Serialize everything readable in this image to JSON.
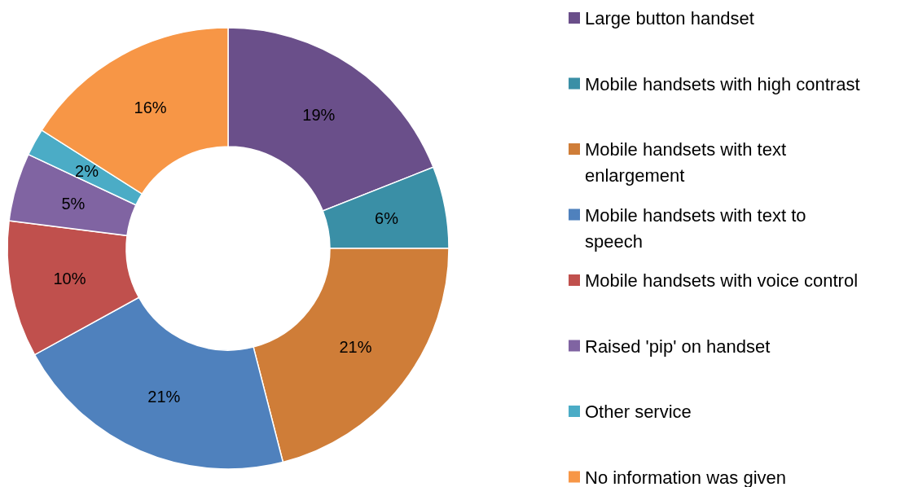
{
  "chart_data": {
    "type": "donut",
    "categories": [
      "Large button handset",
      "Mobile handsets with high contrast",
      "Mobile handsets with text enlargement",
      "Mobile handsets with text to speech",
      "Mobile handsets with voice control",
      "Raised 'pip' on handset",
      "Other service",
      "No information was given"
    ],
    "values": [
      19,
      6,
      21,
      21,
      10,
      5,
      2,
      16
    ],
    "colors": [
      "#6a4f8a",
      "#3a8fa6",
      "#cf7d38",
      "#4f81bd",
      "#c0504d",
      "#8064a2",
      "#4bacc6",
      "#f79646"
    ],
    "value_labels": [
      "19%",
      "6%",
      "21%",
      "21%",
      "10%",
      "5%",
      "2%",
      "16%"
    ],
    "legend": "right"
  }
}
